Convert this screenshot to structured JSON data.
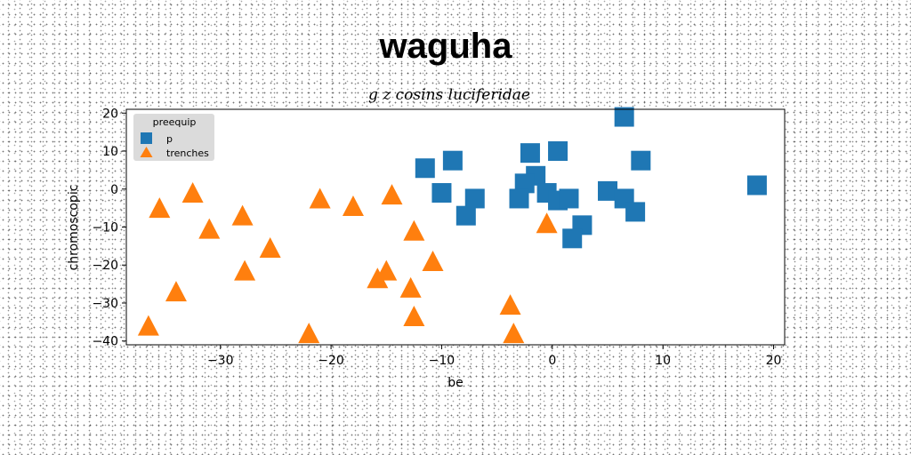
{
  "chart_data": {
    "type": "scatter",
    "title": "waguha",
    "subtitle": "g z cosins luciferidae",
    "xlabel": "be",
    "ylabel": "chromoscopic",
    "xlim": [
      -38.5,
      21
    ],
    "ylim": [
      -41,
      21
    ],
    "xticks": [
      -30,
      -20,
      -10,
      0,
      10,
      20
    ],
    "yticks": [
      20,
      10,
      0,
      -10,
      -20,
      -30,
      -40
    ],
    "grid": false,
    "legend": {
      "title": "preequip",
      "position": "top-left"
    },
    "series": [
      {
        "name": "p",
        "marker": "square",
        "color": "#1f77b4",
        "points": [
          [
            6.5,
            19
          ],
          [
            -11.5,
            5.5
          ],
          [
            -9,
            7.5
          ],
          [
            -2,
            9.5
          ],
          [
            0.5,
            10
          ],
          [
            8,
            7.5
          ],
          [
            -1.5,
            3.5
          ],
          [
            -2.5,
            1.5
          ],
          [
            -10,
            -1
          ],
          [
            -7,
            -2.5
          ],
          [
            -3,
            -2.5
          ],
          [
            -0.5,
            -1
          ],
          [
            0.5,
            -3
          ],
          [
            1.5,
            -2.5
          ],
          [
            5,
            -0.5
          ],
          [
            6.5,
            -2.5
          ],
          [
            7.5,
            -6
          ],
          [
            -7.8,
            -7
          ],
          [
            2.7,
            -9.5
          ],
          [
            1.8,
            -13
          ],
          [
            18.5,
            1
          ]
        ]
      },
      {
        "name": "trenches",
        "marker": "triangle",
        "color": "#ff7f0e",
        "points": [
          [
            -35.5,
            -5
          ],
          [
            -32.5,
            -1
          ],
          [
            -31,
            -10.5
          ],
          [
            -28,
            -7
          ],
          [
            -27.8,
            -21.5
          ],
          [
            -25.5,
            -15.5
          ],
          [
            -21,
            -2.5
          ],
          [
            -18,
            -4.5
          ],
          [
            -14.5,
            -1.5
          ],
          [
            -12.5,
            -11
          ],
          [
            -15,
            -21.5
          ],
          [
            -15.8,
            -23.5
          ],
          [
            -10.8,
            -19
          ],
          [
            -12.8,
            -26
          ],
          [
            -12.5,
            -33.5
          ],
          [
            -34,
            -27
          ],
          [
            -36.5,
            -36
          ],
          [
            -22,
            -38
          ],
          [
            -3.8,
            -30.5
          ],
          [
            -3.5,
            -38
          ],
          [
            -0.5,
            -9
          ]
        ]
      }
    ]
  }
}
